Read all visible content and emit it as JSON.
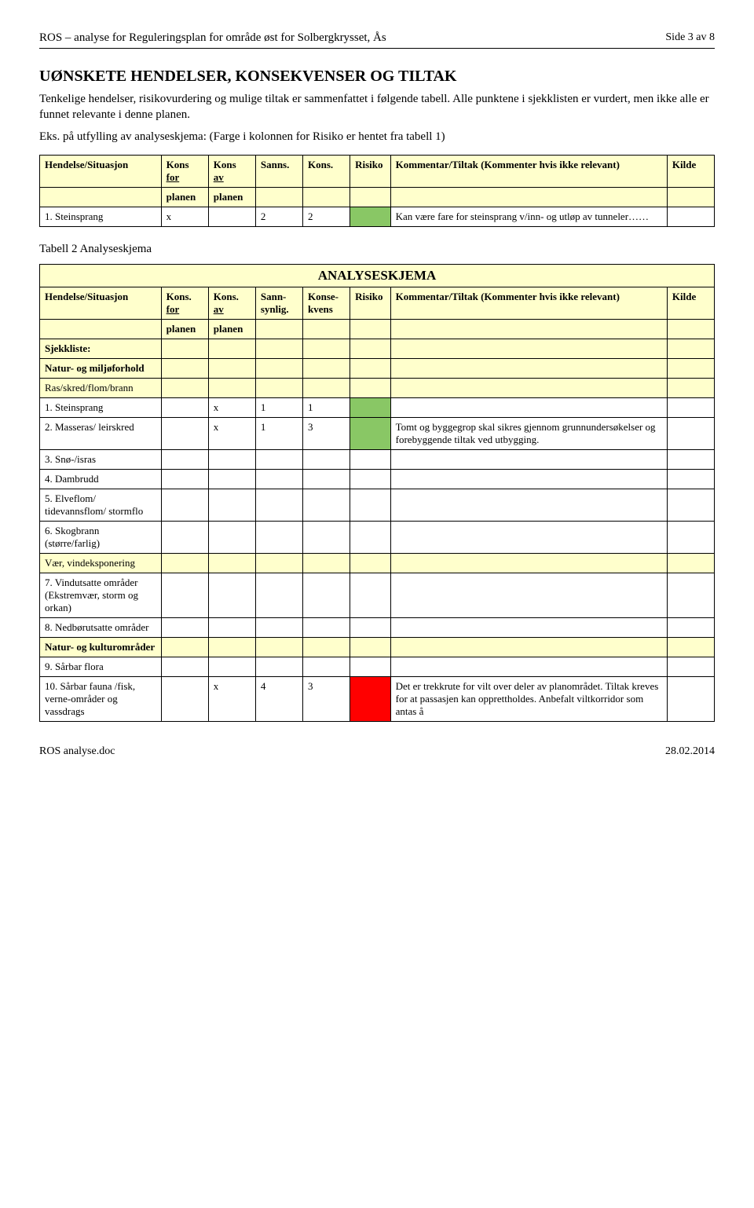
{
  "page": {
    "header_left": "ROS – analyse for Reguleringsplan for område øst for Solbergkrysset, Ås",
    "header_right": "Side 3 av 8"
  },
  "title": "UØNSKETE HENDELSER, KONSEKVENSER OG TILTAK",
  "intro": "Tenkelige hendelser, risikovurdering og mulige tiltak er sammenfattet i følgende tabell. Alle punktene i sjekklisten er vurdert, men ikke alle er funnet relevante i denne planen.",
  "example_note": "Eks. på utfylling av analyseskjema: (Farge i kolonnen for Risiko er hentet fra tabell 1)",
  "table1": {
    "headers": {
      "hs": "Hendelse/Situasjon",
      "kons_for": "Kons",
      "kons_for_sub": "for",
      "kons_av": "Kons",
      "kons_av_sub": "av",
      "sanns": "Sanns.",
      "kons": "Kons.",
      "risiko": "Risiko",
      "kommentar": "Kommentar/Tiltak (Kommenter hvis ikke relevant)",
      "kilde": "Kilde",
      "planen": "planen"
    },
    "row1": {
      "label": "1.  Steinsprang",
      "kf": "x",
      "ka": "",
      "s": "2",
      "k": "2",
      "risk_color": "#89c765",
      "comment": "Kan være fare for steinsprang v/inn- og utløp av tunneler……"
    }
  },
  "caption2": "Tabell 2 Analyseskjema",
  "table2": {
    "title": "ANALYSESKJEMA",
    "headers": {
      "hs": "Hendelse/Situasjon",
      "kons_for": "Kons.",
      "kons_for_sub": "for",
      "kons_av": "Kons.",
      "kons_av_sub": "av",
      "sanns": "Sann-synlig.",
      "kons": "Konse-kvens",
      "risiko": "Risiko",
      "kommentar": "Kommentar/Tiltak (Kommenter hvis ikke relevant)",
      "kilde": "Kilde",
      "planen": "planen"
    },
    "sections": {
      "sjekkliste": "Sjekkliste:",
      "natur_miljo": "Natur- og miljøforhold",
      "ras": "Ras/skred/flom/brann",
      "vaer": "Vær, vindeksponering",
      "natur_kultur": "Natur- og kulturområder"
    },
    "rows": {
      "r1": {
        "label": "1.  Steinsprang",
        "kf": "",
        "ka": "x",
        "s": "1",
        "k": "1",
        "risk_color": "#89c765",
        "comment": ""
      },
      "r2": {
        "label": "2.  Masseras/ leirskred",
        "kf": "",
        "ka": "x",
        "s": "1",
        "k": "3",
        "risk_color": "#89c765",
        "comment": "Tomt og byggegrop skal sikres gjennom grunnundersøkelser og forebyggende tiltak ved utbygging."
      },
      "r3": {
        "label": "3.  Snø-/isras"
      },
      "r4": {
        "label": "4.  Dambrudd"
      },
      "r5": {
        "label": "5.  Elveflom/ tidevannsflom/ stormflo"
      },
      "r6": {
        "label": "6.  Skogbrann (større/farlig)"
      },
      "r7": {
        "label": "7.  Vindutsatte områder (Ekstremvær, storm og orkan)"
      },
      "r8": {
        "label": "8.  Nedbørutsatte områder"
      },
      "r9": {
        "label": "9.  Sårbar flora"
      },
      "r10": {
        "label": "10. Sårbar fauna /fisk, verne-områder og vassdrags",
        "kf": "",
        "ka": "x",
        "s": "4",
        "k": "3",
        "risk_color": "#ff0000",
        "comment": "Det er trekkrute for vilt over deler av planområdet. Tiltak kreves for at passasjen kan opprettholdes. Anbefalt viltkorridor som antas å"
      }
    }
  },
  "footer": {
    "left": "ROS analyse.doc",
    "right": "28.02.2014"
  },
  "colors": {
    "header_bg": "#ffffcc",
    "green": "#89c765",
    "red": "#ff0000"
  }
}
